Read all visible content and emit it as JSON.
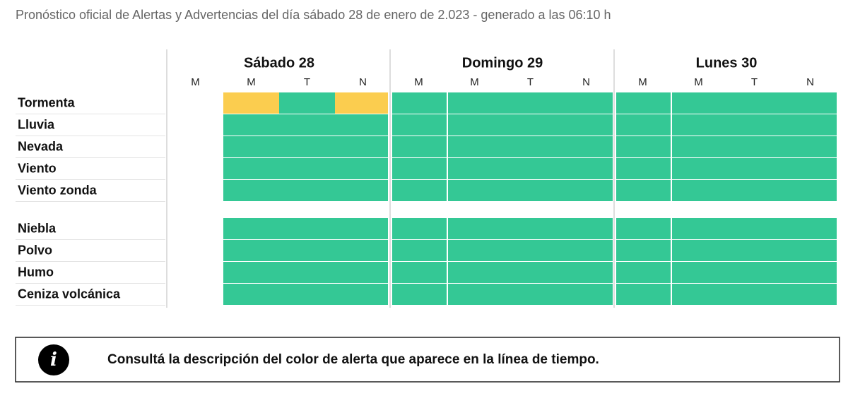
{
  "header": {
    "title": "Pronóstico oficial de Alertas y Advertencias del día sábado 28 de enero de 2.023 - generado a las 06:10 h"
  },
  "table": {
    "days": [
      {
        "name": "Sábado 28",
        "periods": [
          "M",
          "M",
          "T",
          "N"
        ]
      },
      {
        "name": "Domingo 29",
        "periods": [
          "M",
          "M",
          "T",
          "N"
        ]
      },
      {
        "name": "Lunes 30",
        "periods": [
          "M",
          "M",
          "T",
          "N"
        ]
      }
    ],
    "groups": [
      {
        "rows": [
          {
            "label": "Tormenta",
            "cells": [
              [
                null,
                "#fbcd4f",
                "#34c895",
                "#fbcd4f"
              ],
              [
                "#34c895",
                "#34c895",
                "#34c895",
                "#34c895"
              ],
              [
                "#34c895",
                "#34c895",
                "#34c895",
                "#34c895"
              ]
            ]
          },
          {
            "label": "Lluvia",
            "cells": [
              [
                null,
                "#34c895",
                "#34c895",
                "#34c895"
              ],
              [
                "#34c895",
                "#34c895",
                "#34c895",
                "#34c895"
              ],
              [
                "#34c895",
                "#34c895",
                "#34c895",
                "#34c895"
              ]
            ]
          },
          {
            "label": "Nevada",
            "cells": [
              [
                null,
                "#34c895",
                "#34c895",
                "#34c895"
              ],
              [
                "#34c895",
                "#34c895",
                "#34c895",
                "#34c895"
              ],
              [
                "#34c895",
                "#34c895",
                "#34c895",
                "#34c895"
              ]
            ]
          },
          {
            "label": "Viento",
            "cells": [
              [
                null,
                "#34c895",
                "#34c895",
                "#34c895"
              ],
              [
                "#34c895",
                "#34c895",
                "#34c895",
                "#34c895"
              ],
              [
                "#34c895",
                "#34c895",
                "#34c895",
                "#34c895"
              ]
            ]
          },
          {
            "label": "Viento zonda",
            "cells": [
              [
                null,
                "#34c895",
                "#34c895",
                "#34c895"
              ],
              [
                "#34c895",
                "#34c895",
                "#34c895",
                "#34c895"
              ],
              [
                "#34c895",
                "#34c895",
                "#34c895",
                "#34c895"
              ]
            ]
          }
        ]
      },
      {
        "rows": [
          {
            "label": "Niebla",
            "cells": [
              [
                null,
                "#34c895",
                "#34c895",
                "#34c895"
              ],
              [
                "#34c895",
                "#34c895",
                "#34c895",
                "#34c895"
              ],
              [
                "#34c895",
                "#34c895",
                "#34c895",
                "#34c895"
              ]
            ]
          },
          {
            "label": "Polvo",
            "cells": [
              [
                null,
                "#34c895",
                "#34c895",
                "#34c895"
              ],
              [
                "#34c895",
                "#34c895",
                "#34c895",
                "#34c895"
              ],
              [
                "#34c895",
                "#34c895",
                "#34c895",
                "#34c895"
              ]
            ]
          },
          {
            "label": "Humo",
            "cells": [
              [
                null,
                "#34c895",
                "#34c895",
                "#34c895"
              ],
              [
                "#34c895",
                "#34c895",
                "#34c895",
                "#34c895"
              ],
              [
                "#34c895",
                "#34c895",
                "#34c895",
                "#34c895"
              ]
            ]
          },
          {
            "label": "Ceniza volcánica",
            "cells": [
              [
                null,
                "#34c895",
                "#34c895",
                "#34c895"
              ],
              [
                "#34c895",
                "#34c895",
                "#34c895",
                "#34c895"
              ],
              [
                "#34c895",
                "#34c895",
                "#34c895",
                "#34c895"
              ]
            ]
          }
        ]
      }
    ]
  },
  "note": {
    "icon": "i",
    "text": "Consultá la descripción del color de alerta que aparece en la línea de tiempo."
  }
}
